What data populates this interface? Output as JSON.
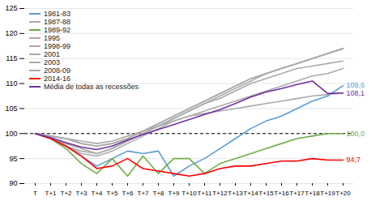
{
  "chart_data": {
    "type": "line",
    "categories": [
      "T",
      "T+1",
      "T+2",
      "T+3",
      "T+4",
      "T+5",
      "T+6",
      "T+7",
      "T+8",
      "T+9",
      "T+10",
      "T+11",
      "T+12",
      "T+13",
      "T+14",
      "T+15",
      "T+16",
      "T+17",
      "T+18",
      "T+19",
      "T+20"
    ],
    "series": [
      {
        "name": "1981-83",
        "color": "#5b9bd5",
        "values": [
          100,
          99,
          97.5,
          95.5,
          93.5,
          95,
          96.5,
          96,
          96.5,
          91.5,
          93.5,
          95,
          97,
          99,
          101,
          102.5,
          103.5,
          105,
          106.5,
          107.5,
          109.6
        ]
      },
      {
        "name": "1987-88",
        "color": "#aaaaaa",
        "values": [
          100,
          99,
          97.5,
          96.5,
          96,
          97,
          98.5,
          100,
          101.5,
          103,
          104.5,
          106,
          107.5,
          109,
          110.5,
          112,
          113,
          114,
          115,
          116,
          117
        ]
      },
      {
        "name": "1989-92",
        "color": "#70ad47",
        "values": [
          100,
          99,
          97,
          94,
          92,
          95,
          91.5,
          95.5,
          92,
          95,
          95,
          92,
          94,
          95,
          96,
          97,
          98,
          99,
          99.5,
          100,
          100
        ]
      },
      {
        "name": "1995",
        "color": "#aaaaaa",
        "values": [
          100,
          99.5,
          99,
          98,
          97.5,
          98,
          99,
          100.5,
          102,
          103.5,
          105,
          106.5,
          108,
          109.5,
          111,
          112,
          113,
          114,
          115,
          116,
          117
        ]
      },
      {
        "name": "1998-99",
        "color": "#aaaaaa",
        "values": [
          100,
          99.5,
          99,
          98,
          97.5,
          98,
          99,
          100.5,
          102,
          103.5,
          105,
          106.5,
          108,
          109.5,
          111,
          112,
          113,
          114,
          115,
          116,
          117
        ]
      },
      {
        "name": "2001",
        "color": "#aaaaaa",
        "values": [
          100,
          99.5,
          99,
          98.5,
          98,
          98.5,
          99.5,
          100.5,
          101.5,
          102.5,
          103.5,
          104.5,
          105.5,
          106.5,
          107.5,
          108.5,
          109.5,
          110.5,
          111.5,
          112,
          113
        ]
      },
      {
        "name": "2003",
        "color": "#aaaaaa",
        "values": [
          100,
          99,
          98,
          97,
          96,
          97,
          98.5,
          100,
          101.5,
          103,
          104.5,
          106,
          107,
          108.5,
          110,
          111,
          112,
          113,
          113.5,
          114,
          114.5
        ]
      },
      {
        "name": "2008-09",
        "color": "#aaaaaa",
        "values": [
          100,
          99,
          97.5,
          96,
          95.5,
          96.5,
          98,
          99.5,
          101,
          102.5,
          103.5,
          104,
          104.5,
          105,
          105.5,
          106,
          106.5,
          107,
          107.5,
          107.8,
          108.1
        ]
      },
      {
        "name": "2014-16",
        "color": "#ff0000",
        "values": [
          100,
          99,
          97.5,
          95.5,
          93,
          93.5,
          95,
          93,
          92.5,
          92,
          91.5,
          92,
          93,
          93.5,
          93.5,
          94,
          94.5,
          94.5,
          95,
          94.7,
          94.7
        ]
      },
      {
        "name": "Média de todas as recessões",
        "color": "#7030a0",
        "values": [
          100,
          99.2,
          98.2,
          97.3,
          96.8,
          97.5,
          98.7,
          99.8,
          100.8,
          101.8,
          102.8,
          103.8,
          104.8,
          106,
          107.3,
          108.3,
          109,
          109.8,
          110.5,
          108,
          108.1
        ]
      }
    ],
    "annotations": [
      {
        "text": "109,6",
        "color": "#5b9bd5",
        "x": "T+20",
        "y": 109.6
      },
      {
        "text": "108,1",
        "color": "#7030a0",
        "x": "T+20",
        "y": 108.1
      },
      {
        "text": "100,0",
        "color": "#70ad47",
        "x": "T+20",
        "y": 100.0
      },
      {
        "text": "94,7",
        "color": "#ff0000",
        "x": "T+20",
        "y": 94.7
      }
    ],
    "reference_lines": [
      {
        "y": 100,
        "line_style": "dashed"
      }
    ],
    "ylim": [
      90,
      125
    ],
    "yticks": [
      90,
      95,
      100,
      105,
      110,
      115,
      120,
      125
    ],
    "grid": true,
    "legend": "upper left"
  }
}
